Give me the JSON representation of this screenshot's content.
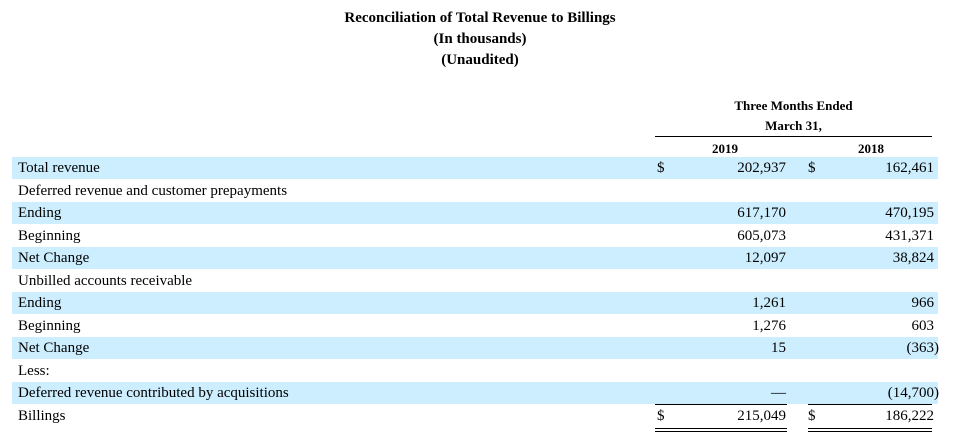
{
  "title": {
    "line1": "Reconciliation of Total Revenue to Billings",
    "line2": "(In thousands)",
    "line3": "(Unaudited)"
  },
  "header": {
    "period_line1": "Three Months Ended",
    "period_line2": "March 31,",
    "col_2019": "2019",
    "col_2018": "2018"
  },
  "rows": [
    {
      "label": "Total revenue",
      "dollar_2019": "$",
      "v2019": "202,937",
      "dollar_2018": "$",
      "v2018": "162,461"
    },
    {
      "label": "Deferred revenue and customer prepayments",
      "dollar_2019": "",
      "v2019": "",
      "dollar_2018": "",
      "v2018": ""
    },
    {
      "label": "Ending",
      "dollar_2019": "",
      "v2019": "617,170",
      "dollar_2018": "",
      "v2018": "470,195"
    },
    {
      "label": "Beginning",
      "dollar_2019": "",
      "v2019": "605,073",
      "dollar_2018": "",
      "v2018": "431,371"
    },
    {
      "label": "Net Change",
      "dollar_2019": "",
      "v2019": "12,097",
      "dollar_2018": "",
      "v2018": "38,824"
    },
    {
      "label": "Unbilled accounts receivable",
      "dollar_2019": "",
      "v2019": "",
      "dollar_2018": "",
      "v2018": ""
    },
    {
      "label": "Ending",
      "dollar_2019": "",
      "v2019": "1,261",
      "dollar_2018": "",
      "v2018": "966"
    },
    {
      "label": "Beginning",
      "dollar_2019": "",
      "v2019": "1,276",
      "dollar_2018": "",
      "v2018": "603"
    },
    {
      "label": "Net Change",
      "dollar_2019": "",
      "v2019": "15",
      "dollar_2018": "",
      "v2018": "(363)"
    },
    {
      "label": "Less:",
      "dollar_2019": "",
      "v2019": "",
      "dollar_2018": "",
      "v2018": ""
    },
    {
      "label": "Deferred revenue contributed by acquisitions",
      "dollar_2019": "",
      "v2019": "—",
      "dollar_2018": "",
      "v2018": "(14,700)"
    },
    {
      "label": "Billings",
      "dollar_2019": "$",
      "v2019": "215,049",
      "dollar_2018": "$",
      "v2018": "186,222"
    }
  ]
}
